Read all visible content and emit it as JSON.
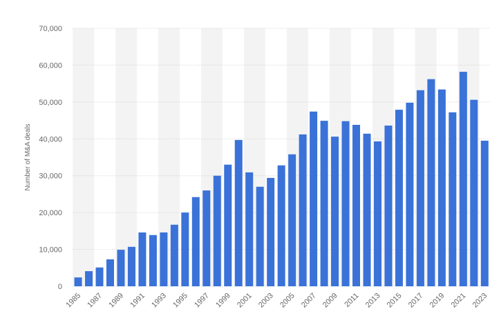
{
  "chart_data": {
    "type": "bar",
    "y_axis_label": "Number of M&A deals",
    "categories": [
      "1985",
      null,
      "1987",
      null,
      "1989",
      null,
      "1991",
      null,
      "1993",
      null,
      "1995",
      null,
      "1997",
      null,
      "1999",
      null,
      "2001",
      null,
      "2003",
      null,
      "2005",
      null,
      "2007",
      null,
      "2009",
      null,
      "2011",
      null,
      "2013",
      null,
      "2015",
      null,
      "2017",
      null,
      "2019",
      null,
      "2021",
      null,
      "2023"
    ],
    "values": [
      2400,
      4100,
      5100,
      7300,
      9900,
      10700,
      14600,
      13900,
      14600,
      16700,
      20000,
      24200,
      26000,
      30000,
      33000,
      39700,
      30900,
      27000,
      29400,
      32800,
      35800,
      41200,
      47400,
      44900,
      40600,
      44800,
      43800,
      41400,
      39300,
      43600,
      47900,
      49800,
      53200,
      56200,
      53400,
      47200,
      58200,
      50600,
      39500
    ],
    "color": "#3a72d8",
    "ylim": [
      0,
      70000
    ],
    "yticks": [
      0,
      {
        "value": 10000,
        "label": "10,000"
      },
      {
        "value": 20000,
        "label": "20,000"
      },
      {
        "value": 30000,
        "label": "30,000"
      },
      {
        "value": 40000,
        "label": "40,000"
      },
      {
        "value": 50000,
        "label": "50,000"
      },
      {
        "value": 60000,
        "label": "60,000"
      },
      {
        "value": 70000,
        "label": "70,000"
      }
    ],
    "grid": true
  }
}
